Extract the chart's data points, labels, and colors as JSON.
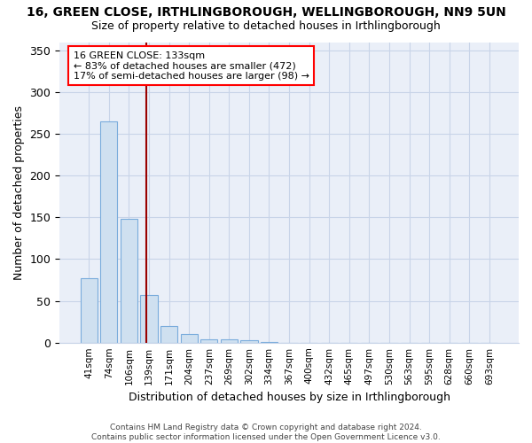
{
  "title": "16, GREEN CLOSE, IRTHLINGBOROUGH, WELLINGBOROUGH, NN9 5UN",
  "subtitle": "Size of property relative to detached houses in Irthlingborough",
  "xlabel": "Distribution of detached houses by size in Irthlingborough",
  "ylabel": "Number of detached properties",
  "bar_color": "#cfe0f0",
  "bar_edge_color": "#7aacdc",
  "categories": [
    "41sqm",
    "74sqm",
    "106sqm",
    "139sqm",
    "171sqm",
    "204sqm",
    "237sqm",
    "269sqm",
    "302sqm",
    "334sqm",
    "367sqm",
    "400sqm",
    "432sqm",
    "465sqm",
    "497sqm",
    "530sqm",
    "563sqm",
    "595sqm",
    "628sqm",
    "660sqm",
    "693sqm"
  ],
  "values": [
    77,
    265,
    148,
    57,
    20,
    10,
    4,
    4,
    3,
    1,
    0,
    0,
    0,
    0,
    0,
    0,
    0,
    0,
    0,
    0,
    0
  ],
  "property_label": "16 GREEN CLOSE: 133sqm",
  "annotation_line1": "← 83% of detached houses are smaller (472)",
  "annotation_line2": "17% of semi-detached houses are larger (98) →",
  "vline_position": 2.85,
  "footer_line1": "Contains HM Land Registry data © Crown copyright and database right 2024.",
  "footer_line2": "Contains public sector information licensed under the Open Government Licence v3.0.",
  "ylim": [
    0,
    360
  ],
  "yticks": [
    0,
    50,
    100,
    150,
    200,
    250,
    300,
    350
  ],
  "grid_color": "#c8d4e8",
  "background_color": "#eaeff8"
}
